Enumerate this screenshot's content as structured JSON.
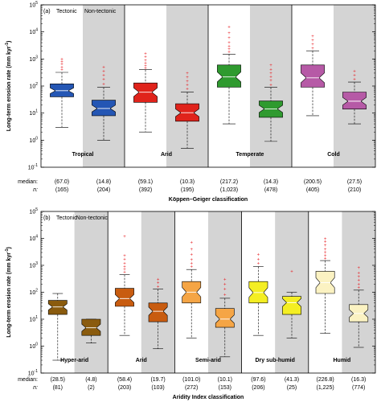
{
  "panels": [
    {
      "panel_label": "(a)",
      "tectonic_label": "Tectonic",
      "nontectonic_label": "Non-tectonic",
      "xlabel": "Köppen–Geiger classification",
      "groups": [
        "Tropical",
        "Arid",
        "Temperate",
        "Cold"
      ],
      "median_caption": "median:",
      "n_caption": "n:",
      "median_labels": [
        "(67.0)",
        "(14.8)",
        "(59.1)",
        "(10.3)",
        "(217.2)",
        "(14.3)",
        "(200.5)",
        "(27.5)"
      ],
      "n_labels": [
        "(165)",
        "(204)",
        "(392)",
        "(195)",
        "(1,023)",
        "(478)",
        "(405)",
        "(210)"
      ]
    },
    {
      "panel_label": "(b)",
      "tectonic_label": "Tectonic",
      "nontectonic_label": "Non-tectonic",
      "xlabel": "Aridity Index classification",
      "groups": [
        "Hyper-arid",
        "Arid",
        "Semi-arid",
        "Dry sub-humid",
        "Humid"
      ],
      "median_caption": "median:",
      "n_caption": "n:",
      "median_labels": [
        "(28.5)",
        "(4.8)",
        "(58.4)",
        "(19.7)",
        "(101.0)",
        "(10.1)",
        "(97.6)",
        "(41.3)",
        "(226.8)",
        "(16.3)"
      ],
      "n_labels": [
        "(81)",
        "(2)",
        "(203)",
        "(103)",
        "(272)",
        "(153)",
        "(206)",
        "(25)",
        "(1,225)",
        "(774)"
      ]
    }
  ],
  "y_axis": {
    "label": "Long-term erosion rate (mm  kyr",
    "label_sup": "-1",
    "label_end": ")",
    "tick_base": "10",
    "tick_exponents": [
      "-1",
      "0",
      "1",
      "2",
      "3",
      "4",
      "5"
    ]
  },
  "colors": {
    "nontectonic_shade": "#d4d4d4",
    "tropical": "#2456b4",
    "arid_kg": "#e0231b",
    "temperate": "#2f9a2f",
    "cold": "#b65aa6",
    "hyper_arid": "#8a5b0e",
    "arid_ai": "#c85c10",
    "semi_arid": "#f5a545",
    "dry_sub_humid": "#f4ee23",
    "humid": "#fbf2c2",
    "outlier": "#e8252a"
  },
  "chart_data": [
    {
      "type": "box",
      "title": "",
      "xlabel": "Köppen–Geiger classification",
      "ylabel": "Long-term erosion rate (mm kyr-1)",
      "yscale": "log",
      "ylim": [
        0.1,
        100000
      ],
      "grid": false,
      "groups": [
        "Tropical",
        "Arid",
        "Temperate",
        "Cold"
      ],
      "series": [
        {
          "name": "Tectonic",
          "group": "Tropical",
          "color": "#2456b4",
          "median": 67.0,
          "n": 165,
          "q1": 40,
          "q3": 120,
          "whisker_low": 3,
          "whisker_high": 320,
          "outliers": [
            400,
            500,
            650,
            800,
            1000
          ]
        },
        {
          "name": "Non-tectonic",
          "group": "Tropical",
          "color": "#2456b4",
          "median": 14.8,
          "n": 204,
          "q1": 8,
          "q3": 30,
          "whisker_low": 1,
          "whisker_high": 90,
          "outliers": [
            120,
            180,
            250,
            350,
            500
          ]
        },
        {
          "name": "Tectonic",
          "group": "Arid",
          "color": "#e0231b",
          "median": 59.1,
          "n": 392,
          "q1": 25,
          "q3": 130,
          "whisker_low": 2,
          "whisker_high": 400,
          "outliers": [
            450,
            550,
            700,
            900,
            1200,
            1600
          ]
        },
        {
          "name": "Non-tectonic",
          "group": "Arid",
          "color": "#e0231b",
          "median": 10.3,
          "n": 195,
          "q1": 5,
          "q3": 22,
          "whisker_low": 0.5,
          "whisker_high": 60,
          "outliers": [
            80,
            110,
            150,
            210,
            300
          ]
        },
        {
          "name": "Tectonic",
          "group": "Temperate",
          "color": "#2f9a2f",
          "median": 217.2,
          "n": 1023,
          "q1": 90,
          "q3": 600,
          "whisker_low": 4,
          "whisker_high": 1500,
          "outliers": [
            1800,
            2300,
            3000,
            4000,
            6000,
            9000,
            15000
          ]
        },
        {
          "name": "Non-tectonic",
          "group": "Temperate",
          "color": "#2f9a2f",
          "median": 14.3,
          "n": 478,
          "q1": 7,
          "q3": 28,
          "whisker_low": 0.9,
          "whisker_high": 90,
          "outliers": [
            110,
            160,
            220,
            300,
            400,
            600
          ]
        },
        {
          "name": "Tectonic",
          "group": "Cold",
          "color": "#b65aa6",
          "median": 200.5,
          "n": 405,
          "q1": 90,
          "q3": 600,
          "whisker_low": 8,
          "whisker_high": 2000,
          "outliers": [
            2500,
            3500,
            5000,
            7000
          ]
        },
        {
          "name": "Non-tectonic",
          "group": "Cold",
          "color": "#b65aa6",
          "median": 27.5,
          "n": 210,
          "q1": 14,
          "q3": 60,
          "whisker_low": 4,
          "whisker_high": 140,
          "outliers": [
            180,
            250,
            350
          ]
        }
      ]
    },
    {
      "type": "box",
      "title": "",
      "xlabel": "Aridity Index classification",
      "ylabel": "Long-term erosion rate (mm kyr-1)",
      "yscale": "log",
      "ylim": [
        0.1,
        100000
      ],
      "grid": false,
      "groups": [
        "Hyper-arid",
        "Arid",
        "Semi-arid",
        "Dry sub-humid",
        "Humid"
      ],
      "series": [
        {
          "name": "Tectonic",
          "group": "Hyper-arid",
          "color": "#8a5b0e",
          "median": 28.5,
          "n": 81,
          "q1": 15,
          "q3": 50,
          "whisker_low": 0.3,
          "whisker_high": 90,
          "outliers": []
        },
        {
          "name": "Non-tectonic",
          "group": "Hyper-arid",
          "color": "#8a5b0e",
          "median": 4.8,
          "n": 2,
          "q1": 2.5,
          "q3": 10,
          "whisker_low": 1.3,
          "whisker_high": 10,
          "outliers": []
        },
        {
          "name": "Tectonic",
          "group": "Arid",
          "color": "#c85c10",
          "median": 58.4,
          "n": 203,
          "q1": 30,
          "q3": 140,
          "whisker_low": 2.5,
          "whisker_high": 450,
          "outliers": [
            550,
            700,
            900,
            1200,
            1700,
            2300,
            12000
          ]
        },
        {
          "name": "Non-tectonic",
          "group": "Arid",
          "color": "#c85c10",
          "median": 19.7,
          "n": 103,
          "q1": 8,
          "q3": 40,
          "whisker_low": 0.8,
          "whisker_high": 130,
          "outliers": [
            160,
            230,
            300
          ]
        },
        {
          "name": "Tectonic",
          "group": "Semi-arid",
          "color": "#f5a545",
          "median": 101.0,
          "n": 272,
          "q1": 40,
          "q3": 250,
          "whisker_low": 2,
          "whisker_high": 700,
          "outliers": [
            900,
            1200,
            1600,
            2500,
            4000,
            7000
          ]
        },
        {
          "name": "Non-tectonic",
          "group": "Semi-arid",
          "color": "#f5a545",
          "median": 10.1,
          "n": 153,
          "q1": 5,
          "q3": 25,
          "whisker_low": 0.4,
          "whisker_high": 60,
          "outliers": [
            80,
            130,
            200,
            300
          ]
        },
        {
          "name": "Tectonic",
          "group": "Dry sub-humid",
          "color": "#f4ee23",
          "median": 97.6,
          "n": 206,
          "q1": 40,
          "q3": 250,
          "whisker_low": 2.5,
          "whisker_high": 900,
          "outliers": [
            1200,
            1700,
            2500
          ]
        },
        {
          "name": "Non-tectonic",
          "group": "Dry sub-humid",
          "color": "#f4ee23",
          "median": 41.3,
          "n": 25,
          "q1": 15,
          "q3": 70,
          "whisker_low": 2,
          "whisker_high": 100,
          "outliers": [
            600
          ]
        },
        {
          "name": "Tectonic",
          "group": "Humid",
          "color": "#fbf2c2",
          "median": 226.8,
          "n": 1225,
          "q1": 90,
          "q3": 600,
          "whisker_low": 3,
          "whisker_high": 1500,
          "outliers": [
            1800,
            2300,
            3000,
            4000,
            5500,
            7500,
            9500
          ]
        },
        {
          "name": "Non-tectonic",
          "group": "Humid",
          "color": "#fbf2c2",
          "median": 16.3,
          "n": 774,
          "q1": 8,
          "q3": 35,
          "whisker_low": 0.9,
          "whisker_high": 120,
          "outliers": [
            150,
            200,
            280,
            380,
            520,
            800
          ]
        }
      ]
    }
  ]
}
